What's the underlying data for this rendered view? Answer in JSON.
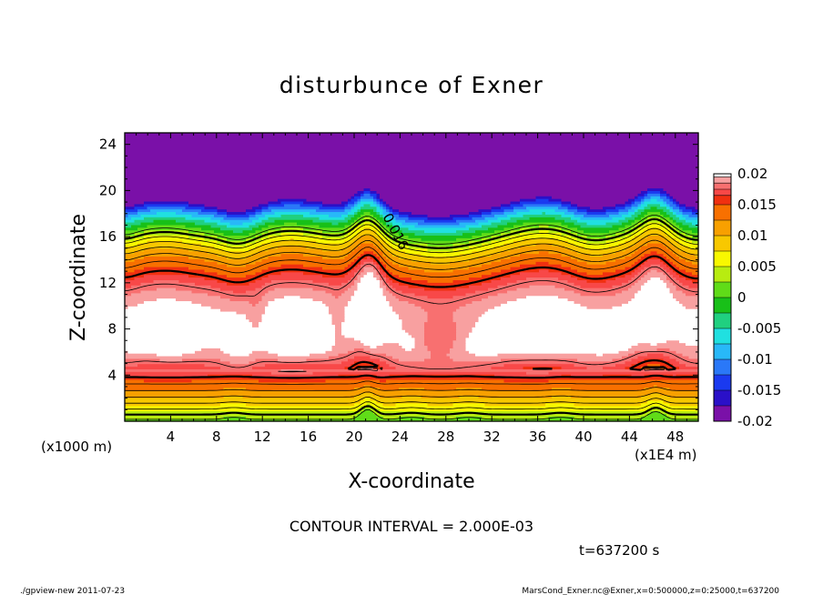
{
  "chart_data": {
    "type": "heatmap",
    "title": "disturbunce of Exner",
    "xlabel": "X-coordinate",
    "ylabel": "Z-coordinate",
    "x_unit": "(x1E4 m)",
    "y_unit": "(x1000 m)",
    "xlim": [
      0,
      50
    ],
    "ylim": [
      0,
      25
    ],
    "x_ticks": [
      4,
      8,
      12,
      16,
      20,
      24,
      28,
      32,
      36,
      40,
      44,
      48
    ],
    "y_ticks": [
      4,
      8,
      12,
      16,
      20,
      24
    ],
    "contour_label": "0.016",
    "contour_interval_text": "CONTOUR INTERVAL = 2.000E-03",
    "time_text": "t=637200 s",
    "colorbar": {
      "min": -0.02,
      "max": 0.02,
      "tick_labels": [
        "0.02",
        "0.015",
        "0.01",
        "0.005",
        "0",
        "-0.005",
        "-0.01",
        "-0.015",
        "-0.02"
      ],
      "tick_values": [
        0.02,
        0.015,
        0.01,
        0.005,
        0,
        -0.005,
        -0.01,
        -0.015,
        -0.02
      ],
      "levels": [
        {
          "lo": -0.02,
          "hi": -0.0175,
          "color": "#7a10a8"
        },
        {
          "lo": -0.0175,
          "hi": -0.015,
          "color": "#2a10c8"
        },
        {
          "lo": -0.015,
          "hi": -0.0125,
          "color": "#1a3af0"
        },
        {
          "lo": -0.0125,
          "hi": -0.01,
          "color": "#2a78f8"
        },
        {
          "lo": -0.01,
          "hi": -0.0075,
          "color": "#28b8f8"
        },
        {
          "lo": -0.0075,
          "hi": -0.005,
          "color": "#20e0e0"
        },
        {
          "lo": -0.005,
          "hi": -0.0025,
          "color": "#20d080"
        },
        {
          "lo": -0.0025,
          "hi": 0.0,
          "color": "#18c018"
        },
        {
          "lo": 0.0,
          "hi": 0.0025,
          "color": "#60dc18"
        },
        {
          "lo": 0.0025,
          "hi": 0.005,
          "color": "#b8ec10"
        },
        {
          "lo": 0.005,
          "hi": 0.0075,
          "color": "#f8f800"
        },
        {
          "lo": 0.0075,
          "hi": 0.01,
          "color": "#f8c800"
        },
        {
          "lo": 0.01,
          "hi": 0.0125,
          "color": "#f8a000"
        },
        {
          "lo": 0.0125,
          "hi": 0.015,
          "color": "#f87000"
        },
        {
          "lo": 0.015,
          "hi": 0.0165,
          "color": "#f03010"
        },
        {
          "lo": 0.0165,
          "hi": 0.0175,
          "color": "#f84848"
        },
        {
          "lo": 0.0175,
          "hi": 0.0185,
          "color": "#f87070"
        },
        {
          "lo": 0.0185,
          "hi": 0.0195,
          "color": "#f8a0a0"
        },
        {
          "lo": 0.0195,
          "hi": 0.02,
          "color": "#ffffff"
        }
      ]
    }
  },
  "footer": {
    "left": "./gpview-new   2011-07-23",
    "right": "MarsCond_Exner.nc@Exner,x=0:500000,z=0:25000,t=637200"
  }
}
